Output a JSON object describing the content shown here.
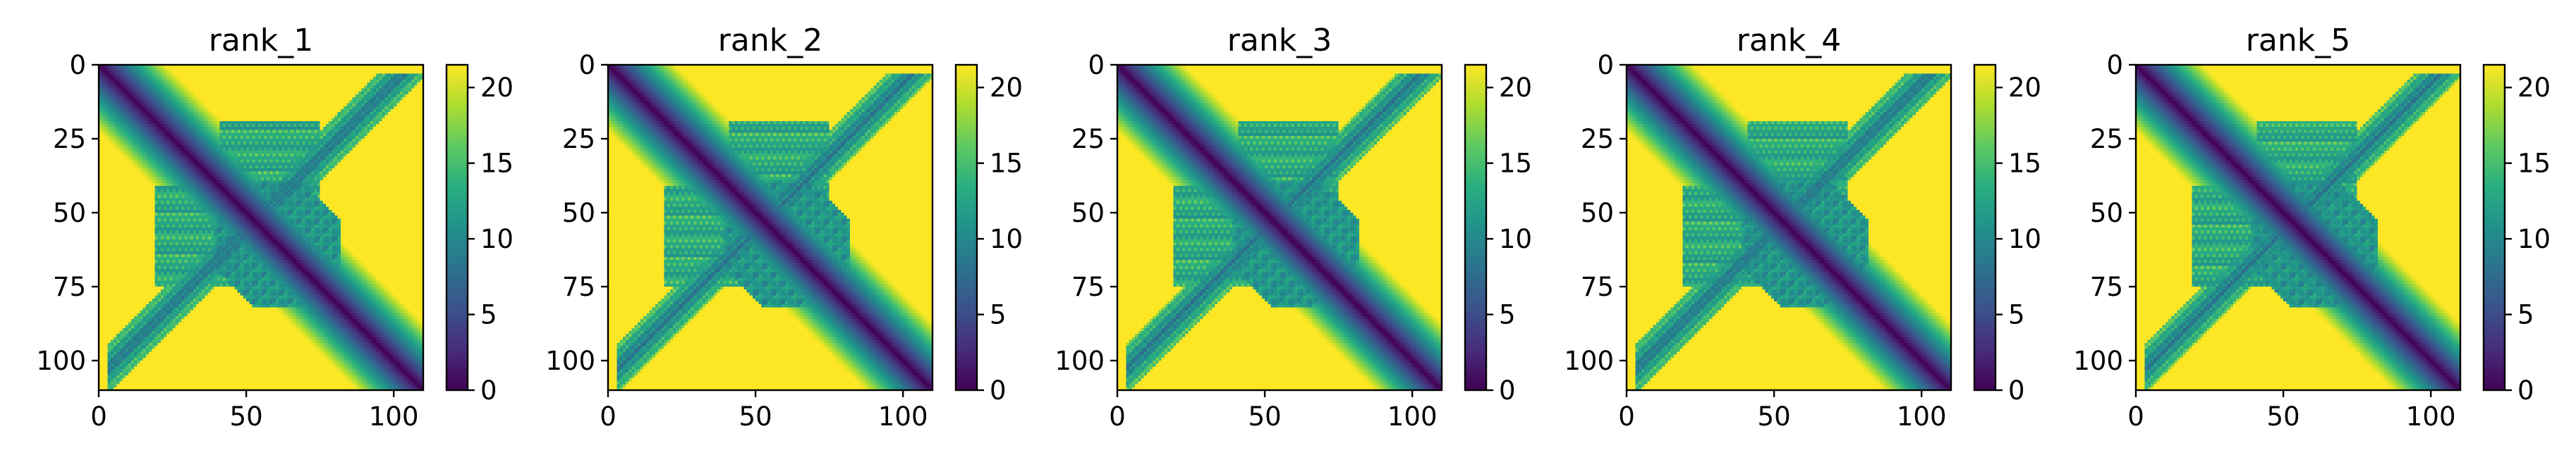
{
  "chart_data": {
    "type": "heatmap",
    "colormap": "viridis",
    "matrix_size": 110,
    "x_ticks": [
      0,
      50,
      100
    ],
    "y_ticks": [
      0,
      25,
      50,
      75,
      100
    ],
    "colorbar": {
      "min": 0,
      "max": 21.5,
      "ticks": [
        0,
        5,
        10,
        15,
        20
      ]
    },
    "panels": [
      {
        "title": "rank_1"
      },
      {
        "title": "rank_2"
      },
      {
        "title": "rank_3"
      },
      {
        "title": "rank_4"
      },
      {
        "title": "rank_5"
      }
    ]
  }
}
